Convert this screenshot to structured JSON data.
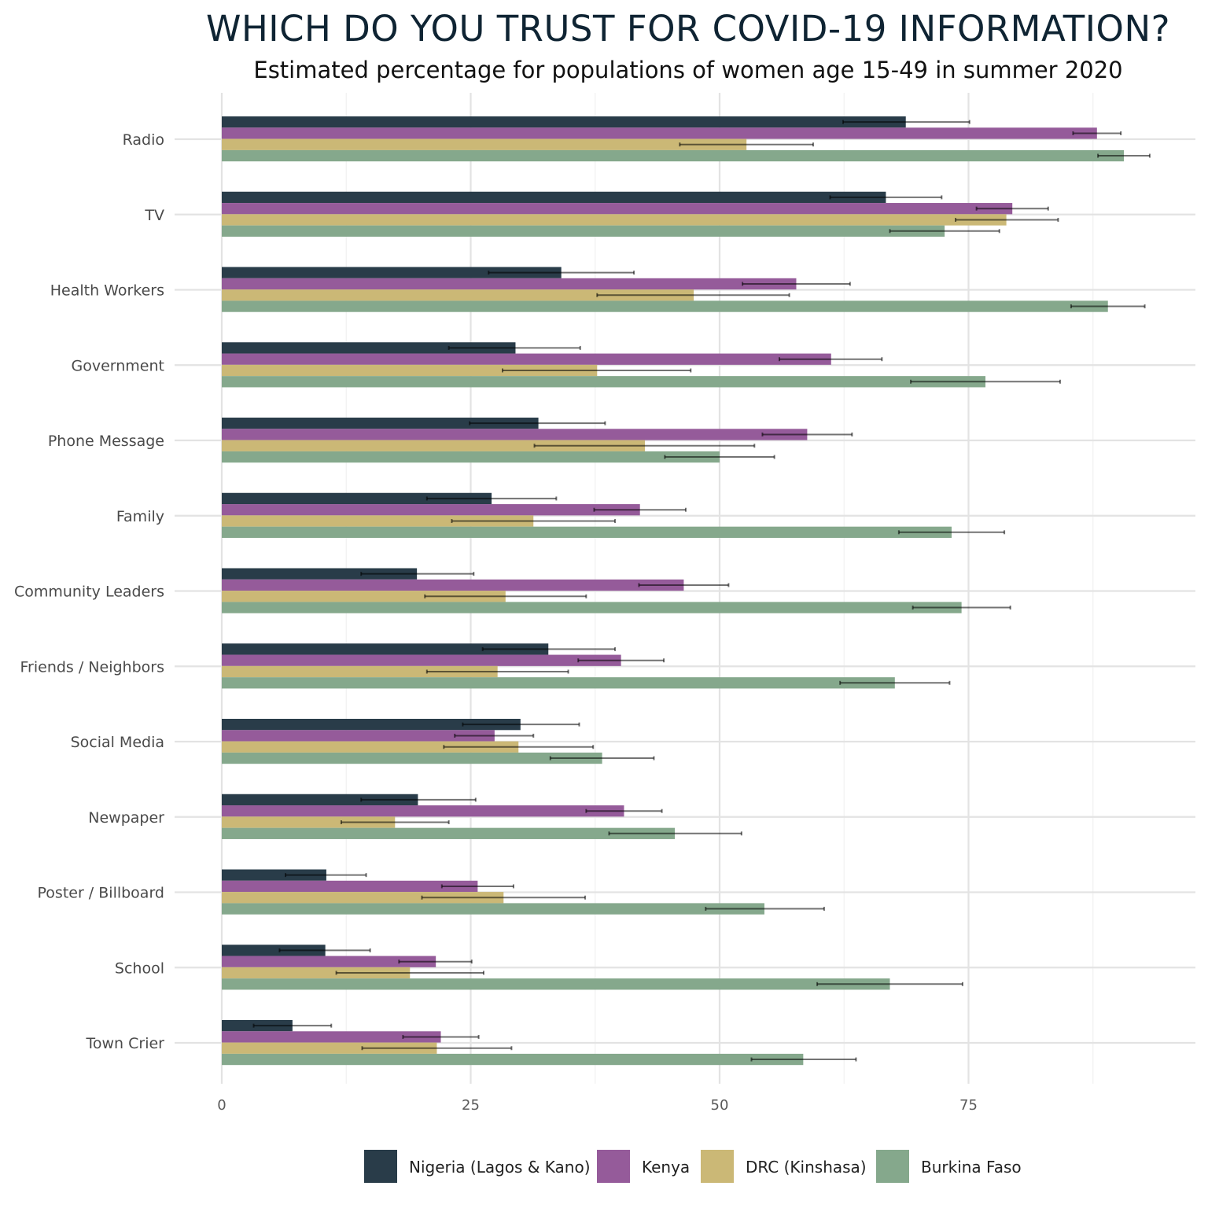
{
  "chart_data": {
    "type": "bar",
    "orientation": "horizontal",
    "title": "WHICH DO YOU TRUST FOR COVID-19 INFORMATION?",
    "subtitle": "Estimated percentage for populations of women age 15-49 in summer 2020",
    "xlabel": "",
    "ylabel": "",
    "xlim": [
      0,
      97.5
    ],
    "x_ticks": [
      0,
      25,
      50,
      75
    ],
    "grid": true,
    "legend_position": "bottom",
    "categories": [
      "Radio",
      "TV",
      "Health Workers",
      "Government",
      "Phone Message",
      "Family",
      "Community Leaders",
      "Friends / Neighbors",
      "Social Media",
      "Newpaper",
      "Poster / Billboard",
      "School",
      "Town Crier"
    ],
    "series": [
      {
        "name": "Nigeria (Lagos & Kano)",
        "color": "#293c49",
        "values": [
          68.7,
          66.7,
          34.1,
          29.5,
          31.8,
          27.1,
          19.6,
          32.8,
          30.0,
          19.7,
          10.5,
          10.4,
          7.1
        ],
        "ci_low": [
          62.4,
          61.1,
          26.8,
          22.8,
          24.9,
          20.6,
          14.0,
          26.2,
          24.2,
          14.0,
          6.4,
          5.8,
          3.2
        ],
        "ci_high": [
          75.1,
          72.3,
          41.4,
          36.0,
          38.5,
          33.6,
          25.3,
          39.5,
          35.9,
          25.5,
          14.5,
          14.9,
          11.0
        ]
      },
      {
        "name": "Kenya",
        "color": "#955b9a",
        "values": [
          87.9,
          79.4,
          57.7,
          61.2,
          58.8,
          42.0,
          46.4,
          40.1,
          27.4,
          40.4,
          25.7,
          21.5,
          22.0
        ],
        "ci_low": [
          85.5,
          75.8,
          52.3,
          56.0,
          54.3,
          37.4,
          41.9,
          35.8,
          23.4,
          36.6,
          22.1,
          17.8,
          18.2
        ],
        "ci_high": [
          90.3,
          83.0,
          63.1,
          66.3,
          63.3,
          46.6,
          50.9,
          44.4,
          31.3,
          44.2,
          29.3,
          25.1,
          25.8
        ]
      },
      {
        "name": "DRC (Kinshasa)",
        "color": "#cbb876",
        "values": [
          52.7,
          78.8,
          47.4,
          37.7,
          42.5,
          31.3,
          28.5,
          27.7,
          29.8,
          17.4,
          28.3,
          18.9,
          21.6
        ],
        "ci_low": [
          46.0,
          73.7,
          37.7,
          28.2,
          31.4,
          23.1,
          20.4,
          20.6,
          22.3,
          12.0,
          20.1,
          11.5,
          14.1
        ],
        "ci_high": [
          59.4,
          84.0,
          57.0,
          47.1,
          53.5,
          39.5,
          36.6,
          34.8,
          37.3,
          22.8,
          36.5,
          26.3,
          29.1
        ]
      },
      {
        "name": "Burkina Faso",
        "color": "#85a88c",
        "values": [
          90.6,
          72.6,
          89.0,
          76.7,
          50.0,
          73.3,
          74.3,
          67.6,
          38.2,
          45.5,
          54.5,
          67.1,
          58.4
        ],
        "ci_low": [
          88.0,
          67.1,
          85.3,
          69.2,
          44.5,
          68.0,
          69.4,
          62.1,
          33.0,
          38.9,
          48.6,
          59.8,
          53.2
        ],
        "ci_high": [
          93.2,
          78.1,
          92.7,
          84.2,
          55.5,
          78.6,
          79.2,
          73.1,
          43.4,
          52.2,
          60.5,
          74.4,
          63.7
        ]
      }
    ]
  }
}
